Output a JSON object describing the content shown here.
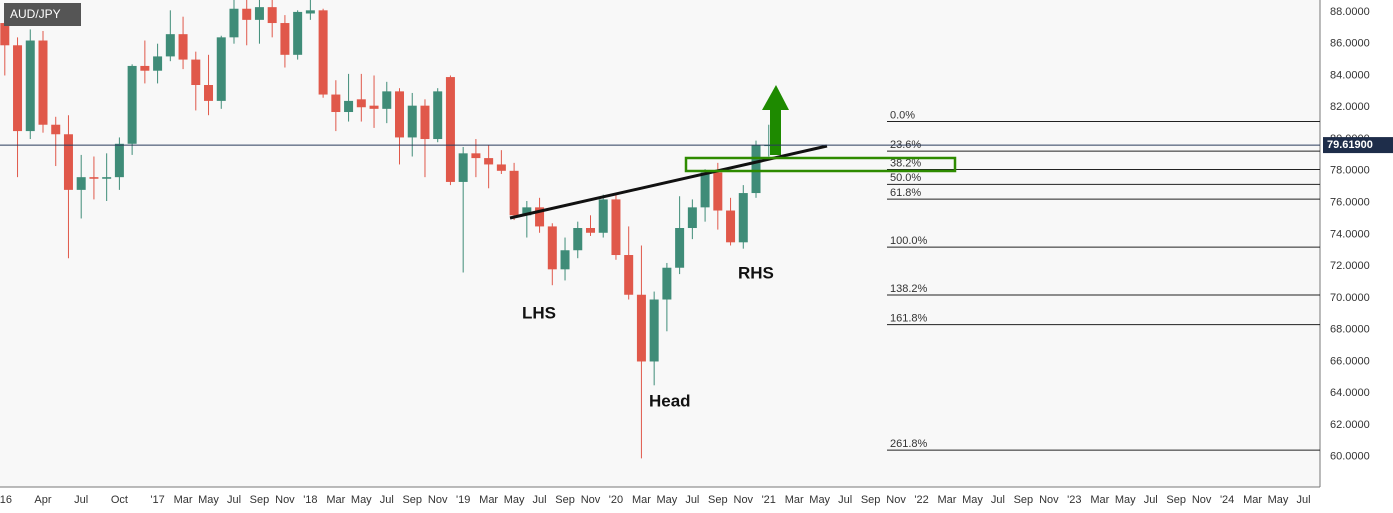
{
  "chart_data": {
    "type": "candlestick",
    "title": "AUD/JPY",
    "x": [
      "2016-01",
      "2016-02",
      "2016-03",
      "2016-04",
      "2016-05",
      "2016-06",
      "2016-07",
      "2016-08",
      "2016-09",
      "2016-10",
      "2016-11",
      "2016-12",
      "2017-01",
      "2017-02",
      "2017-03",
      "2017-04",
      "2017-05",
      "2017-06",
      "2017-07",
      "2017-08",
      "2017-09",
      "2017-10",
      "2017-11",
      "2017-12",
      "2018-01",
      "2018-02",
      "2018-03",
      "2018-04",
      "2018-05",
      "2018-06",
      "2018-07",
      "2018-08",
      "2018-09",
      "2018-10",
      "2018-11",
      "2018-12",
      "2019-01",
      "2019-02",
      "2019-03",
      "2019-04",
      "2019-05",
      "2019-06",
      "2019-07",
      "2019-08",
      "2019-09",
      "2019-10",
      "2019-11",
      "2019-12",
      "2020-01",
      "2020-02",
      "2020-03",
      "2020-04",
      "2020-05",
      "2020-06",
      "2020-07",
      "2020-08",
      "2020-09",
      "2020-10",
      "2020-11",
      "2020-12",
      "2021-01"
    ],
    "open": [
      87.3,
      85.9,
      80.5,
      86.2,
      80.9,
      80.3,
      76.8,
      77.6,
      77.5,
      77.6,
      79.7,
      84.6,
      84.3,
      85.2,
      86.6,
      85.0,
      83.4,
      82.4,
      86.4,
      88.2,
      87.5,
      88.3,
      87.3,
      85.3,
      87.9,
      88.1,
      82.8,
      81.7,
      82.5,
      82.1,
      81.9,
      83.0,
      80.1,
      82.1,
      80.0,
      83.9,
      77.3,
      79.1,
      78.8,
      78.4,
      78.0,
      75.2,
      75.7,
      74.5,
      71.8,
      73.0,
      74.4,
      74.1,
      76.2,
      72.7,
      70.2,
      66.0,
      69.9,
      71.9,
      74.4,
      75.7,
      77.9,
      75.5,
      73.5,
      76.6,
      79.6
    ],
    "high": [
      88.2,
      86.4,
      86.9,
      86.8,
      81.4,
      81.5,
      79.0,
      78.9,
      79.1,
      80.1,
      84.7,
      86.2,
      86.0,
      88.1,
      87.7,
      85.5,
      85.3,
      86.5,
      88.9,
      88.9,
      88.9,
      88.8,
      87.8,
      88.1,
      88.8,
      88.2,
      83.7,
      84.1,
      84.1,
      84.0,
      83.6,
      83.2,
      82.9,
      82.5,
      83.2,
      84.0,
      79.5,
      80.0,
      79.6,
      79.3,
      78.5,
      76.1,
      76.3,
      74.7,
      73.8,
      74.8,
      75.2,
      76.5,
      76.5,
      74.5,
      73.3,
      70.4,
      72.2,
      76.4,
      76.2,
      78.1,
      78.5,
      76.3,
      77.1,
      79.9,
      80.9
    ],
    "low": [
      84.0,
      77.6,
      80.0,
      80.4,
      78.3,
      72.5,
      75.0,
      76.2,
      76.1,
      76.8,
      79.0,
      83.5,
      83.5,
      84.9,
      84.4,
      81.8,
      81.5,
      81.9,
      86.0,
      85.9,
      86.0,
      86.4,
      84.5,
      85.0,
      87.5,
      82.6,
      80.5,
      81.1,
      81.1,
      80.7,
      81.0,
      78.4,
      78.9,
      77.6,
      79.8,
      77.1,
      71.6,
      77.6,
      76.9,
      77.8,
      74.9,
      73.8,
      74.1,
      70.8,
      71.1,
      72.5,
      73.9,
      73.8,
      72.4,
      69.9,
      59.9,
      64.5,
      67.9,
      71.5,
      73.7,
      74.8,
      74.3,
      73.3,
      73.1,
      76.3,
      78.9
    ],
    "close": [
      85.9,
      80.5,
      86.2,
      80.9,
      80.3,
      76.8,
      77.6,
      77.5,
      77.6,
      79.7,
      84.6,
      84.3,
      85.2,
      86.6,
      85.0,
      83.4,
      82.4,
      86.4,
      88.2,
      87.5,
      88.3,
      87.3,
      85.3,
      88.0,
      88.1,
      82.8,
      81.7,
      82.4,
      82.0,
      81.9,
      83.0,
      80.1,
      82.1,
      80.0,
      83.0,
      77.3,
      79.1,
      78.8,
      78.4,
      78.0,
      75.2,
      75.7,
      74.5,
      71.8,
      73.0,
      74.4,
      74.1,
      76.2,
      72.7,
      70.2,
      66.0,
      69.9,
      71.9,
      74.4,
      75.7,
      77.9,
      75.5,
      73.5,
      76.6,
      79.6,
      79.62
    ],
    "up_color": "#3f8c78",
    "down_color": "#e0584a",
    "xlim": [
      "2015-12-20",
      "2024-08-10"
    ],
    "ylim": [
      58.1,
      88.75
    ],
    "grid": true,
    "yticks": [
      {
        "value": 60,
        "label": "60.0000"
      },
      {
        "value": 62,
        "label": "62.0000"
      },
      {
        "value": 64,
        "label": "64.0000"
      },
      {
        "value": 66,
        "label": "66.0000"
      },
      {
        "value": 68,
        "label": "68.0000"
      },
      {
        "value": 70,
        "label": "70.0000"
      },
      {
        "value": 72,
        "label": "72.0000"
      },
      {
        "value": 74,
        "label": "74.0000"
      },
      {
        "value": 76,
        "label": "76.0000"
      },
      {
        "value": 78,
        "label": "78.0000"
      },
      {
        "value": 80,
        "label": "80.0000"
      },
      {
        "value": 82,
        "label": "82.0000"
      },
      {
        "value": 84,
        "label": "84.0000"
      },
      {
        "value": 86,
        "label": "86.0000"
      },
      {
        "value": 88,
        "label": "88.0000"
      }
    ],
    "xticks": [
      {
        "value": "2016-01",
        "label": "'16"
      },
      {
        "value": "2016-04",
        "label": "Apr"
      },
      {
        "value": "2016-07",
        "label": "Jul"
      },
      {
        "value": "2016-10",
        "label": "Oct"
      },
      {
        "value": "2017-01",
        "label": "'17"
      },
      {
        "value": "2017-03",
        "label": "Mar"
      },
      {
        "value": "2017-05",
        "label": "May"
      },
      {
        "value": "2017-07",
        "label": "Jul"
      },
      {
        "value": "2017-09",
        "label": "Sep"
      },
      {
        "value": "2017-11",
        "label": "Nov"
      },
      {
        "value": "2018-01",
        "label": "'18"
      },
      {
        "value": "2018-03",
        "label": "Mar"
      },
      {
        "value": "2018-05",
        "label": "May"
      },
      {
        "value": "2018-07",
        "label": "Jul"
      },
      {
        "value": "2018-09",
        "label": "Sep"
      },
      {
        "value": "2018-11",
        "label": "Nov"
      },
      {
        "value": "2019-01",
        "label": "'19"
      },
      {
        "value": "2019-03",
        "label": "Mar"
      },
      {
        "value": "2019-05",
        "label": "May"
      },
      {
        "value": "2019-07",
        "label": "Jul"
      },
      {
        "value": "2019-09",
        "label": "Sep"
      },
      {
        "value": "2019-11",
        "label": "Nov"
      },
      {
        "value": "2020-01",
        "label": "'20"
      },
      {
        "value": "2020-03",
        "label": "Mar"
      },
      {
        "value": "2020-05",
        "label": "May"
      },
      {
        "value": "2020-07",
        "label": "Jul"
      },
      {
        "value": "2020-09",
        "label": "Sep"
      },
      {
        "value": "2020-11",
        "label": "Nov"
      },
      {
        "value": "2021-01",
        "label": "'21"
      },
      {
        "value": "2021-03",
        "label": "Mar"
      },
      {
        "value": "2021-05",
        "label": "May"
      },
      {
        "value": "2021-07",
        "label": "Jul"
      },
      {
        "value": "2021-09",
        "label": "Sep"
      },
      {
        "value": "2021-11",
        "label": "Nov"
      },
      {
        "value": "2022-01",
        "label": "'22"
      },
      {
        "value": "2022-03",
        "label": "Mar"
      },
      {
        "value": "2022-05",
        "label": "May"
      },
      {
        "value": "2022-07",
        "label": "Jul"
      },
      {
        "value": "2022-09",
        "label": "Sep"
      },
      {
        "value": "2022-11",
        "label": "Nov"
      },
      {
        "value": "2023-01",
        "label": "'23"
      },
      {
        "value": "2023-03",
        "label": "Mar"
      },
      {
        "value": "2023-05",
        "label": "May"
      },
      {
        "value": "2023-07",
        "label": "Jul"
      },
      {
        "value": "2023-09",
        "label": "Sep"
      },
      {
        "value": "2023-11",
        "label": "Nov"
      },
      {
        "value": "2024-01",
        "label": "'24"
      },
      {
        "value": "2024-03",
        "label": "Mar"
      },
      {
        "value": "2024-05",
        "label": "May"
      },
      {
        "value": "2024-07",
        "label": "Jul"
      }
    ],
    "last_price": {
      "value": 79.619,
      "label": "79.61900"
    },
    "fib_high": 81.1,
    "fib_low": 73.2,
    "fib_levels": [
      {
        "value": 0,
        "label": "0.0%"
      },
      {
        "value": 23.6,
        "label": "23.6%"
      },
      {
        "value": 38.2,
        "label": "38.2%"
      },
      {
        "value": 50,
        "label": "50.0%"
      },
      {
        "value": 61.8,
        "label": "61.8%"
      },
      {
        "value": 100,
        "label": "100.0%"
      },
      {
        "value": 138.2,
        "label": "138.2%"
      },
      {
        "value": 161.8,
        "label": "161.8%"
      },
      {
        "value": 261.8,
        "label": "261.8%"
      }
    ],
    "annotations": [
      "LHS",
      "Head",
      "RHS"
    ]
  }
}
